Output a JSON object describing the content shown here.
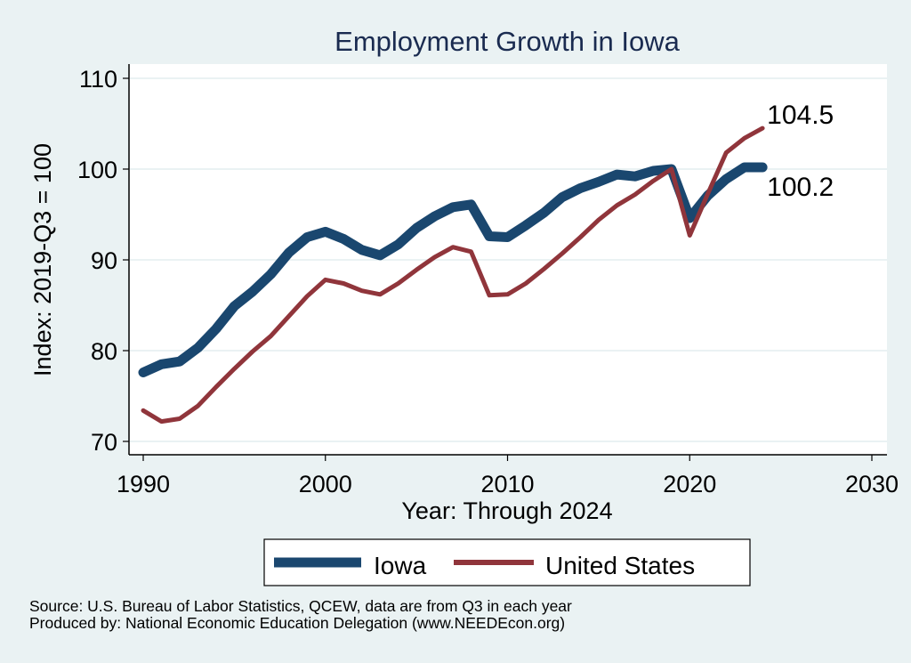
{
  "chart_data": {
    "type": "line",
    "title": "Employment Growth in Iowa",
    "xlabel": "Year: Through 2024",
    "ylabel": "Index: 2019-Q3 = 100",
    "xlim": [
      1990,
      2030
    ],
    "ylim": [
      70,
      110
    ],
    "xticks": [
      1990,
      2000,
      2010,
      2020,
      2030
    ],
    "yticks": [
      70,
      80,
      90,
      100,
      110
    ],
    "grid": true,
    "legend_position": "bottom",
    "x": [
      1990,
      1991,
      1992,
      1993,
      1994,
      1995,
      1996,
      1997,
      1998,
      1999,
      2000,
      2001,
      2002,
      2003,
      2004,
      2005,
      2006,
      2007,
      2008,
      2009,
      2010,
      2011,
      2012,
      2013,
      2014,
      2015,
      2016,
      2017,
      2018,
      2019,
      2020,
      2021,
      2022,
      2023,
      2024
    ],
    "series": [
      {
        "name": "Iowa",
        "color": "#1a476f",
        "values": [
          77.6,
          78.5,
          78.8,
          80.3,
          82.4,
          84.9,
          86.5,
          88.4,
          90.8,
          92.5,
          93.1,
          92.3,
          91.1,
          90.5,
          91.7,
          93.5,
          94.8,
          95.8,
          96.1,
          92.6,
          92.5,
          93.8,
          95.2,
          96.9,
          97.9,
          98.6,
          99.4,
          99.2,
          99.8,
          100.0,
          94.6,
          97.1,
          98.9,
          100.2,
          100.2
        ],
        "end_label": "100.2"
      },
      {
        "name": "United States",
        "color": "#90353b",
        "values": [
          73.4,
          72.2,
          72.5,
          73.9,
          76.0,
          78.0,
          79.9,
          81.6,
          83.8,
          86.0,
          87.8,
          87.4,
          86.6,
          86.2,
          87.4,
          88.9,
          90.3,
          91.4,
          90.9,
          86.1,
          86.2,
          87.4,
          89.0,
          90.7,
          92.5,
          94.4,
          96.0,
          97.2,
          98.7,
          100.0,
          92.7,
          97.3,
          101.8,
          103.4,
          104.5
        ],
        "end_label": "104.5"
      }
    ]
  },
  "footer": {
    "source": "Source: U.S. Bureau of Labor Statistics, QCEW, data are from Q3 in each year",
    "produced_by": "Produced by: National Economic Education Delegation (www.NEEDEcon.org)"
  }
}
